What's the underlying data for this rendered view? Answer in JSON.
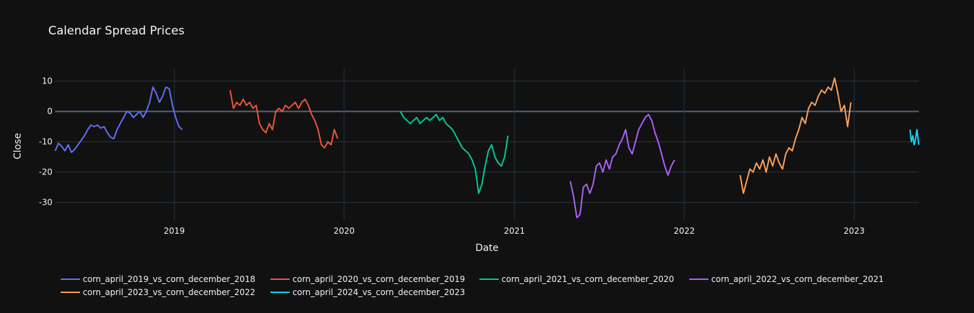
{
  "chart_data": {
    "type": "line",
    "title": "Calendar Spread Prices",
    "xlabel": "Date",
    "ylabel": "Close",
    "x_range": [
      "2018-04-20",
      "2023-05-20"
    ],
    "ylim": [
      -36,
      14
    ],
    "x_ticks": [
      {
        "date": "2019-01-01",
        "label": "2019"
      },
      {
        "date": "2020-01-01",
        "label": "2020"
      },
      {
        "date": "2021-01-01",
        "label": "2021"
      },
      {
        "date": "2022-01-01",
        "label": "2022"
      },
      {
        "date": "2023-01-01",
        "label": "2023"
      }
    ],
    "y_ticks": [
      10,
      0,
      -10,
      -20,
      -30
    ],
    "grid": true,
    "legend_position": "bottom",
    "series": [
      {
        "name": "corn_april_2019_vs_corn_december_2018",
        "color": "#636efa",
        "points": [
          [
            "2018-04-20",
            -13
          ],
          [
            "2018-04-27",
            -10.5
          ],
          [
            "2018-05-04",
            -11.5
          ],
          [
            "2018-05-11",
            -13
          ],
          [
            "2018-05-18",
            -11
          ],
          [
            "2018-05-25",
            -13.5
          ],
          [
            "2018-06-01",
            -12.5
          ],
          [
            "2018-06-08",
            -11
          ],
          [
            "2018-06-15",
            -9.5
          ],
          [
            "2018-06-22",
            -8
          ],
          [
            "2018-06-29",
            -6
          ],
          [
            "2018-07-06",
            -4.5
          ],
          [
            "2018-07-13",
            -5
          ],
          [
            "2018-07-20",
            -4.5
          ],
          [
            "2018-07-27",
            -5.5
          ],
          [
            "2018-08-03",
            -5
          ],
          [
            "2018-08-10",
            -7
          ],
          [
            "2018-08-17",
            -8.5
          ],
          [
            "2018-08-24",
            -9
          ],
          [
            "2018-08-31",
            -6
          ],
          [
            "2018-09-07",
            -4
          ],
          [
            "2018-09-14",
            -2
          ],
          [
            "2018-09-21",
            0
          ],
          [
            "2018-09-28",
            -0.5
          ],
          [
            "2018-10-05",
            -2
          ],
          [
            "2018-10-12",
            -1
          ],
          [
            "2018-10-19",
            0
          ],
          [
            "2018-10-26",
            -2
          ],
          [
            "2018-11-02",
            0
          ],
          [
            "2018-11-09",
            3
          ],
          [
            "2018-11-16",
            8
          ],
          [
            "2018-11-23",
            6
          ],
          [
            "2018-11-30",
            3
          ],
          [
            "2018-12-07",
            5
          ],
          [
            "2018-12-14",
            8
          ],
          [
            "2018-12-21",
            7.5
          ],
          [
            "2018-12-28",
            2
          ],
          [
            "2019-01-04",
            -2
          ],
          [
            "2019-01-11",
            -5
          ],
          [
            "2019-01-18",
            -6
          ]
        ]
      },
      {
        "name": "corn_april_2020_vs_corn_december_2019",
        "color": "#ef553b",
        "points": [
          [
            "2019-05-01",
            7
          ],
          [
            "2019-05-08",
            1
          ],
          [
            "2019-05-15",
            3
          ],
          [
            "2019-05-22",
            2
          ],
          [
            "2019-05-29",
            4
          ],
          [
            "2019-06-05",
            2
          ],
          [
            "2019-06-12",
            3
          ],
          [
            "2019-06-19",
            1
          ],
          [
            "2019-06-26",
            2
          ],
          [
            "2019-07-03",
            -4
          ],
          [
            "2019-07-10",
            -6
          ],
          [
            "2019-07-17",
            -7
          ],
          [
            "2019-07-24",
            -4
          ],
          [
            "2019-07-31",
            -6
          ],
          [
            "2019-08-07",
            0
          ],
          [
            "2019-08-14",
            1
          ],
          [
            "2019-08-21",
            0
          ],
          [
            "2019-08-28",
            2
          ],
          [
            "2019-09-04",
            1
          ],
          [
            "2019-09-11",
            2
          ],
          [
            "2019-09-18",
            3
          ],
          [
            "2019-09-25",
            1
          ],
          [
            "2019-10-02",
            3
          ],
          [
            "2019-10-09",
            4
          ],
          [
            "2019-10-16",
            2
          ],
          [
            "2019-10-23",
            -1
          ],
          [
            "2019-10-30",
            -3
          ],
          [
            "2019-11-06",
            -6
          ],
          [
            "2019-11-13",
            -11
          ],
          [
            "2019-11-20",
            -12
          ],
          [
            "2019-11-27",
            -10
          ],
          [
            "2019-12-04",
            -11
          ],
          [
            "2019-12-11",
            -6
          ],
          [
            "2019-12-18",
            -9
          ]
        ]
      },
      {
        "name": "corn_april_2021_vs_corn_december_2020",
        "color": "#00cc96",
        "points": [
          [
            "2020-05-01",
            0
          ],
          [
            "2020-05-08",
            -2
          ],
          [
            "2020-05-15",
            -3
          ],
          [
            "2020-05-22",
            -4
          ],
          [
            "2020-05-29",
            -3
          ],
          [
            "2020-06-05",
            -2
          ],
          [
            "2020-06-12",
            -4
          ],
          [
            "2020-06-19",
            -3
          ],
          [
            "2020-06-26",
            -2
          ],
          [
            "2020-07-03",
            -3
          ],
          [
            "2020-07-10",
            -2
          ],
          [
            "2020-07-17",
            -1
          ],
          [
            "2020-07-24",
            -3
          ],
          [
            "2020-07-31",
            -2
          ],
          [
            "2020-08-07",
            -4
          ],
          [
            "2020-08-14",
            -5
          ],
          [
            "2020-08-21",
            -6
          ],
          [
            "2020-08-28",
            -8
          ],
          [
            "2020-09-04",
            -10
          ],
          [
            "2020-09-11",
            -12
          ],
          [
            "2020-09-18",
            -13
          ],
          [
            "2020-09-25",
            -14
          ],
          [
            "2020-10-02",
            -16
          ],
          [
            "2020-10-09",
            -19
          ],
          [
            "2020-10-16",
            -27
          ],
          [
            "2020-10-23",
            -24
          ],
          [
            "2020-10-30",
            -18
          ],
          [
            "2020-11-06",
            -13
          ],
          [
            "2020-11-13",
            -11
          ],
          [
            "2020-11-20",
            -15
          ],
          [
            "2020-11-27",
            -17
          ],
          [
            "2020-12-04",
            -18
          ],
          [
            "2020-12-11",
            -15
          ],
          [
            "2020-12-18",
            -8
          ]
        ]
      },
      {
        "name": "corn_april_2022_vs_corn_december_2021",
        "color": "#ab63fa",
        "points": [
          [
            "2021-05-01",
            -23
          ],
          [
            "2021-05-08",
            -28
          ],
          [
            "2021-05-15",
            -35
          ],
          [
            "2021-05-22",
            -34
          ],
          [
            "2021-05-29",
            -25
          ],
          [
            "2021-06-05",
            -24
          ],
          [
            "2021-06-12",
            -27
          ],
          [
            "2021-06-19",
            -24
          ],
          [
            "2021-06-26",
            -18
          ],
          [
            "2021-07-03",
            -17
          ],
          [
            "2021-07-10",
            -20
          ],
          [
            "2021-07-17",
            -16
          ],
          [
            "2021-07-24",
            -19
          ],
          [
            "2021-07-31",
            -15
          ],
          [
            "2021-08-07",
            -14
          ],
          [
            "2021-08-14",
            -11
          ],
          [
            "2021-08-21",
            -9
          ],
          [
            "2021-08-28",
            -6
          ],
          [
            "2021-09-04",
            -12
          ],
          [
            "2021-09-11",
            -14
          ],
          [
            "2021-09-18",
            -10
          ],
          [
            "2021-09-25",
            -6
          ],
          [
            "2021-10-02",
            -4
          ],
          [
            "2021-10-09",
            -2
          ],
          [
            "2021-10-16",
            -1
          ],
          [
            "2021-10-23",
            -3
          ],
          [
            "2021-10-30",
            -7
          ],
          [
            "2021-11-06",
            -10
          ],
          [
            "2021-11-13",
            -14
          ],
          [
            "2021-11-20",
            -18
          ],
          [
            "2021-11-27",
            -21
          ],
          [
            "2021-12-04",
            -18
          ],
          [
            "2021-12-11",
            -16
          ]
        ]
      },
      {
        "name": "corn_april_2023_vs_corn_december_2022",
        "color": "#ffa15a",
        "points": [
          [
            "2022-05-01",
            -21
          ],
          [
            "2022-05-08",
            -27
          ],
          [
            "2022-05-15",
            -23
          ],
          [
            "2022-05-22",
            -19
          ],
          [
            "2022-05-29",
            -20
          ],
          [
            "2022-06-05",
            -17
          ],
          [
            "2022-06-12",
            -19
          ],
          [
            "2022-06-19",
            -16
          ],
          [
            "2022-06-26",
            -20
          ],
          [
            "2022-07-03",
            -15
          ],
          [
            "2022-07-10",
            -18
          ],
          [
            "2022-07-17",
            -14
          ],
          [
            "2022-07-24",
            -17
          ],
          [
            "2022-07-31",
            -19
          ],
          [
            "2022-08-07",
            -14
          ],
          [
            "2022-08-14",
            -12
          ],
          [
            "2022-08-21",
            -13
          ],
          [
            "2022-08-28",
            -9
          ],
          [
            "2022-09-04",
            -6
          ],
          [
            "2022-09-11",
            -2
          ],
          [
            "2022-09-18",
            -4
          ],
          [
            "2022-09-25",
            1
          ],
          [
            "2022-10-02",
            3
          ],
          [
            "2022-10-09",
            2
          ],
          [
            "2022-10-16",
            5
          ],
          [
            "2022-10-23",
            7
          ],
          [
            "2022-10-30",
            6
          ],
          [
            "2022-11-06",
            8
          ],
          [
            "2022-11-13",
            7
          ],
          [
            "2022-11-20",
            11
          ],
          [
            "2022-11-27",
            6
          ],
          [
            "2022-12-04",
            0
          ],
          [
            "2022-12-11",
            2
          ],
          [
            "2022-12-18",
            -5
          ],
          [
            "2022-12-25",
            3
          ]
        ]
      },
      {
        "name": "corn_april_2024_vs_corn_december_2023",
        "color": "#19d3f3",
        "points": [
          [
            "2023-05-01",
            -6
          ],
          [
            "2023-05-04",
            -10
          ],
          [
            "2023-05-07",
            -8
          ],
          [
            "2023-05-10",
            -11
          ],
          [
            "2023-05-13",
            -9
          ],
          [
            "2023-05-16",
            -6
          ],
          [
            "2023-05-20",
            -11
          ]
        ]
      }
    ]
  }
}
